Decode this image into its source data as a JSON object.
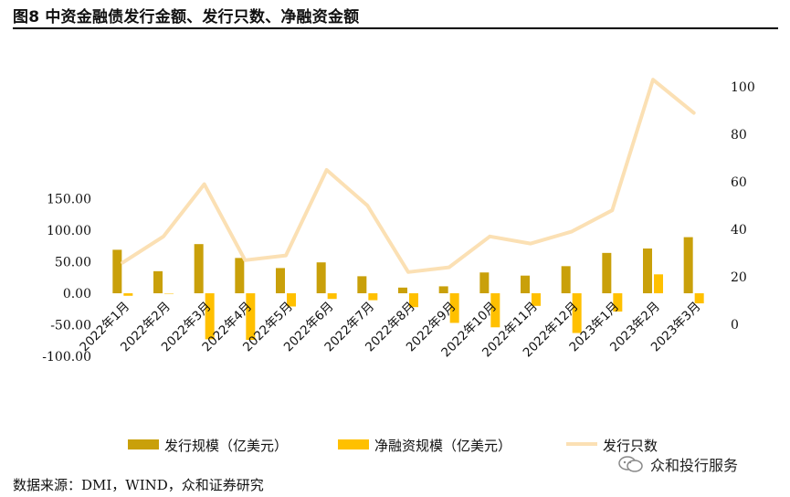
{
  "title": "图8 中资金融债发行金额、发行只数、净融资金额",
  "source": "数据来源：DMI，WIND，众和证券研究",
  "watermark": "众和投行服务",
  "chart_data": {
    "type": "bar+line",
    "categories": [
      "2022年1月",
      "2022年2月",
      "2022年3月",
      "2022年4月",
      "2022年5月",
      "2022年6月",
      "2022年7月",
      "2022年8月",
      "2022年9月",
      "2022年10月",
      "2022年11月",
      "2022年12月",
      "2023年1月",
      "2023年2月",
      "2023年3月"
    ],
    "y_left": {
      "ticks": [
        "150.00",
        "100.00",
        "50.00",
        "0.00",
        "-50.00",
        "-100.00"
      ],
      "range": [
        -100,
        150
      ]
    },
    "y_right": {
      "ticks": [
        "100",
        "80",
        "60",
        "40",
        "20",
        "0"
      ],
      "range": [
        0,
        100
      ]
    },
    "series": [
      {
        "name": "发行规模（亿美元）",
        "type": "bar",
        "axis": "left",
        "color": "#C9A00A",
        "values": [
          69,
          35,
          78,
          56,
          40,
          49,
          27,
          9,
          11,
          33,
          28,
          43,
          64,
          71,
          89
        ]
      },
      {
        "name": "净融资规模（亿美元）",
        "type": "bar",
        "axis": "left",
        "color": "#FFC000",
        "values": [
          -4,
          0,
          -73,
          -74,
          -21,
          -9,
          -11,
          -22,
          -47,
          -54,
          -20,
          -63,
          -29,
          30,
          -16
        ]
      },
      {
        "name": "发行只数",
        "type": "line",
        "axis": "right",
        "color": "#FBE0B4",
        "values": [
          26,
          37,
          59,
          27,
          29,
          65,
          50,
          22,
          24,
          37,
          34,
          39,
          48,
          103,
          89
        ]
      }
    ],
    "legend_position": "bottom",
    "grid": false
  }
}
